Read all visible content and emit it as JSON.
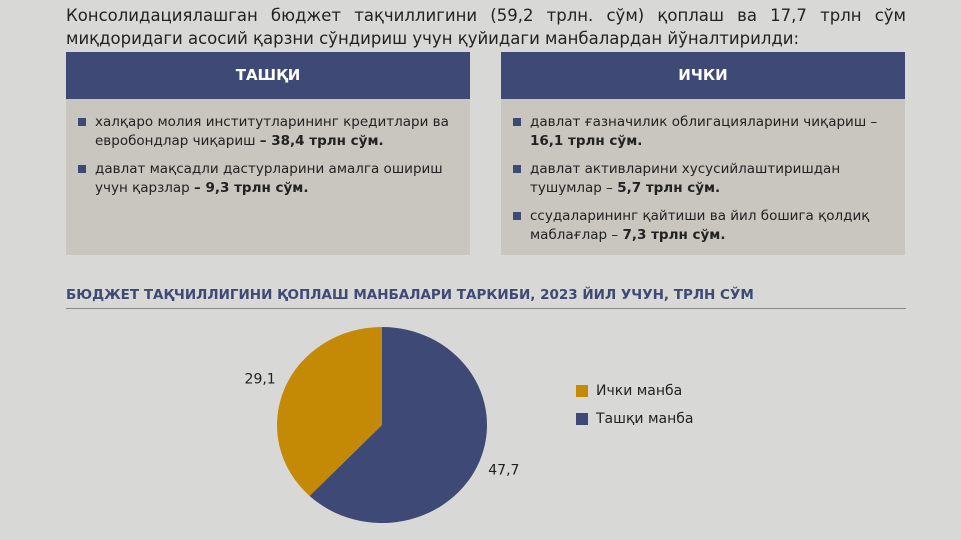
{
  "intro": "Консолидациялашган бюджет тақчиллигини (59,2 трлн. сўм) қоплаш ва 17,7 трлн сўм миқдоридаги асосий қарзни сўндириш учун қуйидаги манбалардан йўналтирилди:",
  "boxes": [
    {
      "title": "ТАШҚИ",
      "items": [
        {
          "text": "халқаро молия институтларининг кредитлари ва евробондлар чиқариш",
          "bold": "– 38,4 трлн сўм."
        },
        {
          "text": "давлат мақсадли дастурларини амалга ошириш учун қарзлар",
          "bold": "– 9,3 трлн сўм."
        }
      ]
    },
    {
      "title": "ИЧКИ",
      "items": [
        {
          "text": "давлат ғазначилик облигацияларини чиқариш –",
          "bold": "16,1 трлн сўм."
        },
        {
          "text": "давлат активларини хусусийлаштиришдан тушумлар –",
          "bold": "5,7 трлн сўм."
        },
        {
          "text": "ссудаларининг қайтиши ва йил бошига қолдиқ маблағлар –",
          "bold": "7,3 трлн сўм."
        }
      ]
    }
  ],
  "chart_data": {
    "type": "pie",
    "title": "БЮДЖЕТ ТАҚЧИЛЛИГИНИ ҚОПЛАШ МАНБАЛАРИ ТАРКИБИ, 2023 ЙИЛ УЧУН, ТРЛН СЎМ",
    "categories": [
      "Ички манба",
      "Ташқи манба"
    ],
    "values": [
      29.1,
      47.7
    ],
    "value_labels": [
      "29,1",
      "47,7"
    ],
    "colors": [
      "#c48a06",
      "#3e4a75"
    ]
  }
}
